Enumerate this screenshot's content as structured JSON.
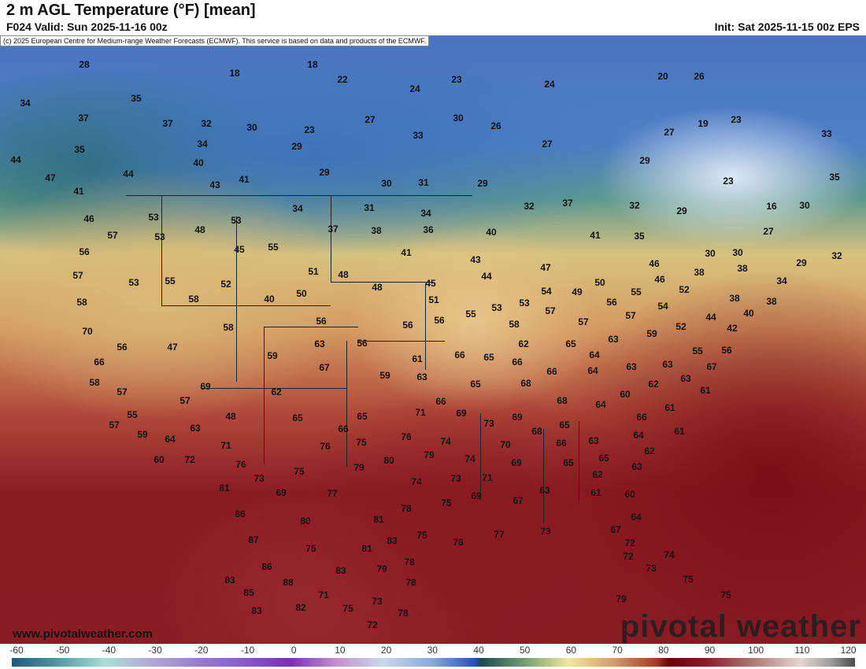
{
  "header": {
    "title": "2 m AGL Temperature (°F) [mean]",
    "valid": "F024 Valid: Sun 2025-11-16 00z",
    "init": "Init: Sat 2025-11-15 00z EPS",
    "copyright": "(c) 2025 European Centre for Medium-range Weather Forecasts (ECMWF). This service is based on data and products of the ECMWF."
  },
  "footer": {
    "website": "www.pivotalweather.com",
    "logo": "pivotal weather"
  },
  "colorbar": {
    "unit": "°F",
    "ticks": [
      "-60",
      "-50",
      "-40",
      "-30",
      "-20",
      "-10",
      "0",
      "10",
      "20",
      "30",
      "40",
      "50",
      "60",
      "70",
      "80",
      "90",
      "100",
      "110",
      "120"
    ]
  },
  "temperature_labels": [
    "28",
    "18",
    "18",
    "22",
    "24",
    "23",
    "24",
    "20",
    "26",
    "34",
    "35",
    "37",
    "37",
    "32",
    "30",
    "23",
    "27",
    "30",
    "26",
    "27",
    "19",
    "23",
    "33",
    "35",
    "34",
    "29",
    "33",
    "27",
    "44",
    "40",
    "29",
    "29",
    "47",
    "44",
    "43",
    "41",
    "30",
    "31",
    "29",
    "23",
    "35",
    "41",
    "46",
    "53",
    "53",
    "34",
    "31",
    "34",
    "32",
    "37",
    "32",
    "29",
    "16",
    "30",
    "57",
    "53",
    "48",
    "37",
    "38",
    "36",
    "40",
    "41",
    "35",
    "27",
    "56",
    "45",
    "55",
    "41",
    "43",
    "30",
    "30",
    "29",
    "32",
    "57",
    "53",
    "55",
    "52",
    "51",
    "48",
    "47",
    "46",
    "38",
    "38",
    "58",
    "58",
    "40",
    "50",
    "48",
    "45",
    "44",
    "50",
    "46",
    "52",
    "34",
    "51",
    "53",
    "54",
    "49",
    "56",
    "55",
    "54",
    "38",
    "38",
    "70",
    "58",
    "56",
    "56",
    "56",
    "55",
    "53",
    "58",
    "57",
    "57",
    "57",
    "52",
    "44",
    "40",
    "42",
    "56",
    "47",
    "63",
    "56",
    "62",
    "65",
    "63",
    "59",
    "55",
    "56",
    "66",
    "59",
    "67",
    "61",
    "66",
    "65",
    "66",
    "64",
    "66",
    "64",
    "63",
    "63",
    "67",
    "58",
    "69",
    "59",
    "63",
    "65",
    "68",
    "63",
    "61",
    "62",
    "57",
    "57",
    "62",
    "66",
    "68",
    "64",
    "60",
    "61",
    "55",
    "48",
    "65",
    "65",
    "71",
    "69",
    "73",
    "69",
    "66",
    "57",
    "63",
    "66",
    "68",
    "65",
    "64",
    "61",
    "59",
    "64",
    "71",
    "76",
    "75",
    "76",
    "74",
    "70",
    "66",
    "63",
    "62",
    "60",
    "72",
    "76",
    "80",
    "79",
    "69",
    "65",
    "65",
    "63",
    "73",
    "75",
    "79",
    "74",
    "62",
    "81",
    "69",
    "77",
    "74",
    "73",
    "71",
    "86",
    "75",
    "78",
    "69",
    "67",
    "63",
    "61",
    "60",
    "80",
    "81",
    "64",
    "87",
    "75",
    "81",
    "83",
    "75",
    "78",
    "77",
    "73",
    "67",
    "72",
    "86",
    "83",
    "79",
    "78",
    "72",
    "74",
    "73",
    "83",
    "88",
    "78",
    "75",
    "85",
    "71",
    "75",
    "73",
    "78",
    "75",
    "83",
    "82",
    "79",
    "72"
  ]
}
